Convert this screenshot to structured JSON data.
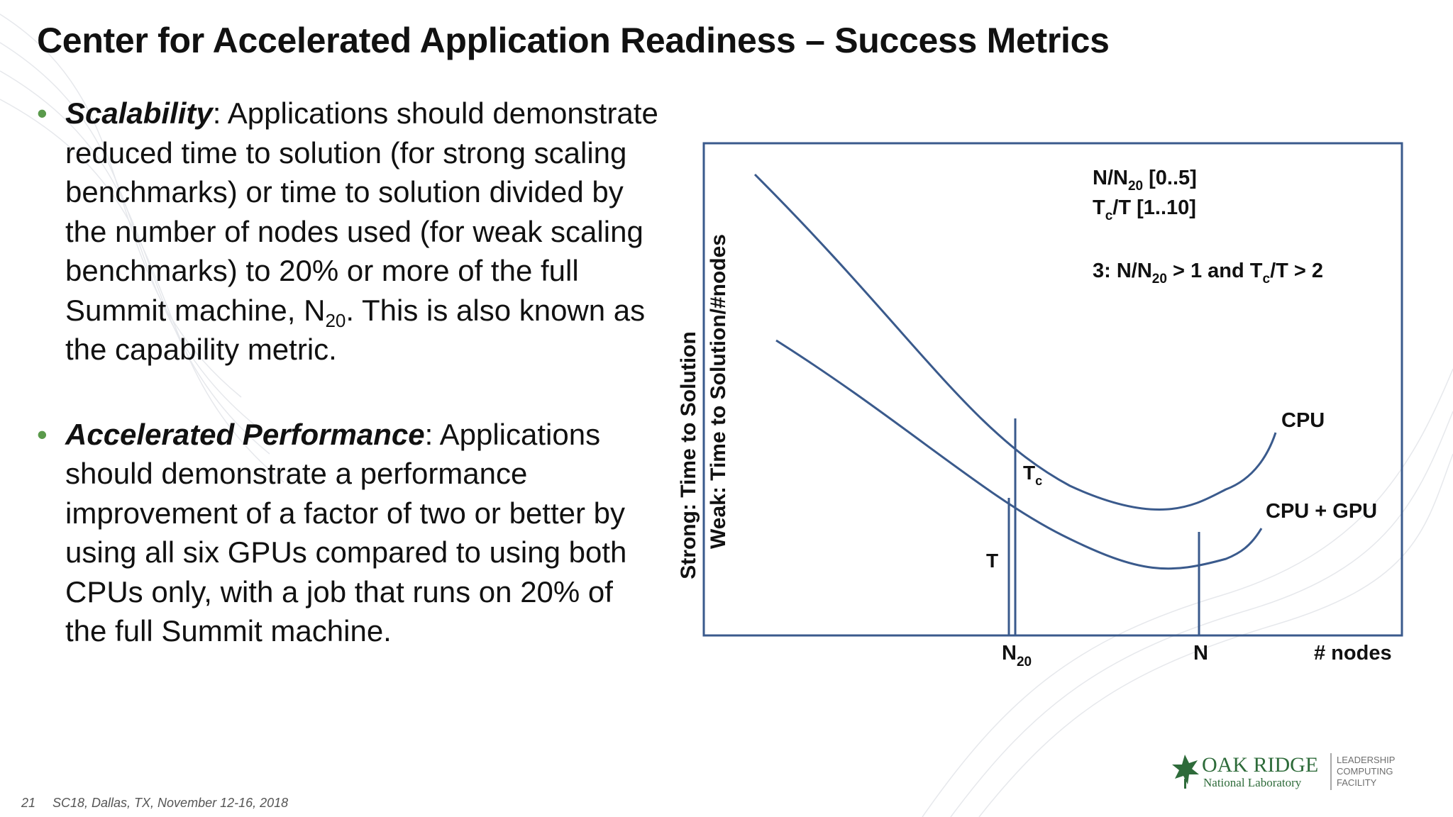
{
  "title": "Center for Accelerated Application Readiness – Success Metrics",
  "bullets": [
    {
      "term": "Scalability",
      "text_before_sub": ": Applications should demonstrate reduced time to solution (for strong scaling benchmarks) or time to solution divided by the number of nodes used (for weak scaling benchmarks) to 20% or more of the full Summit machine, N",
      "sub": "20",
      "text_after_sub": ". This is also known as the capability metric."
    },
    {
      "term": "Accelerated Performance",
      "text": ": Applications should demonstrate a performance improvement of a factor of two or better by using all six GPUs compared to using both CPUs only, with a job that runs on 20% of the full Summit machine."
    }
  ],
  "diagram": {
    "y_label_line1": "Strong: Time to Solution",
    "y_label_line2": "Weak: Time to Solution/#nodes",
    "x_label": "# nodes",
    "x_tick_n20_base": "N",
    "x_tick_n20_sub": "20",
    "x_tick_n": "N",
    "series_cpu": "CPU",
    "series_cpu_gpu": "CPU + GPU",
    "label_tc_base": "T",
    "label_tc_sub": "c",
    "label_t": "T",
    "legend_line1_base": "N/N",
    "legend_line1_sub": "20",
    "legend_line1_rest": " [0..5]",
    "legend_line2_base": "T",
    "legend_line2_sub": "c",
    "legend_line2_rest": "/T [1..10]",
    "legend_line3_pre": "3: N/N",
    "legend_line3_sub1": "20",
    "legend_line3_mid": " > 1 and T",
    "legend_line3_sub2": "c",
    "legend_line3_rest": "/T > 2",
    "line_color": "#3a5a8c",
    "frame_color": "#3a5a8c"
  },
  "logo": {
    "name_main": "OAK RIDGE",
    "name_sub": "National Laboratory",
    "facility_line1": "LEADERSHIP",
    "facility_line2": "COMPUTING",
    "facility_line3": "FACILITY",
    "icon": "leaf-icon",
    "color": "#2e6b3a"
  },
  "footer": {
    "slide_number": "21",
    "event": "SC18, Dallas, TX, November 12-16, 2018"
  }
}
